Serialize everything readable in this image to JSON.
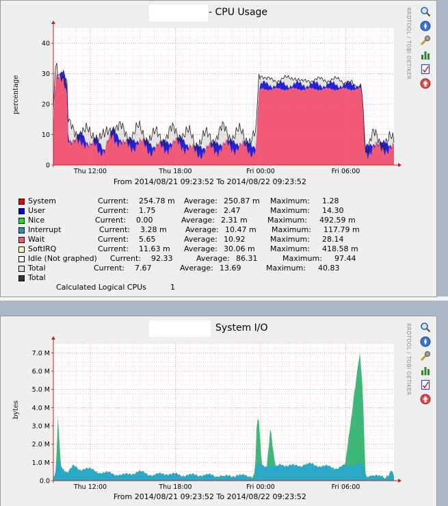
{
  "chart_data": [
    {
      "type": "area",
      "title_suffix": "- CPU Usage",
      "ylabel": "percentage",
      "side_label": "RRDTOOL / TOBI OETIKER",
      "ylim": [
        0,
        45
      ],
      "yticks": [
        "0",
        "10",
        "20",
        "30",
        "40"
      ],
      "xrange": [
        "2014-08-21 09:23:52",
        "2014-08-22 09:23:52"
      ],
      "xticks": [
        "Thu 12:00",
        "Thu 18:00",
        "Fri 00:00",
        "Fri 06:00"
      ],
      "subtitle": "From 2014/08/21 09:23:52 To 2014/08/22 09:23:52",
      "series_profile": {
        "hours": [
          0,
          0.1,
          0.2,
          0.4,
          0.7,
          0.95,
          1.05,
          1.4,
          2,
          2.6,
          3,
          3.6,
          4.2,
          5,
          6,
          7,
          8,
          9,
          10,
          11,
          12,
          13,
          14,
          14.3,
          14.45,
          14.6,
          15,
          16,
          17,
          17.5,
          18,
          19,
          20,
          21,
          21.5,
          21.7,
          22,
          22.5,
          23,
          23.5,
          24
        ],
        "wait": [
          8,
          25,
          28,
          27,
          29,
          26,
          8,
          6,
          9,
          5,
          7,
          4,
          10,
          6,
          7,
          5,
          6,
          7,
          4,
          5,
          6,
          6,
          5,
          5,
          22,
          25,
          25,
          25,
          25,
          25,
          25,
          25,
          25,
          25,
          25,
          25,
          4,
          6,
          5,
          6,
          5
        ],
        "total": [
          14,
          29,
          31,
          30,
          30,
          28,
          13,
          10,
          12,
          9,
          11,
          8,
          14,
          10,
          11,
          9,
          10,
          11,
          8,
          9,
          11,
          10,
          9,
          9,
          28,
          30,
          28,
          28,
          29,
          27,
          28,
          28,
          28,
          27,
          24,
          22,
          6,
          9,
          8,
          8,
          7
        ]
      },
      "legend": [
        {
          "name": "System",
          "color": "#ee0000",
          "current": "254.78 m",
          "average": "250.87 m",
          "maximum": "1.28"
        },
        {
          "name": "User",
          "color": "#0000ee",
          "current": "1.75",
          "average": "2.47",
          "maximum": "14.30"
        },
        {
          "name": "Nice",
          "color": "#00ee00",
          "current": "0.00",
          "average": "2.31 m",
          "maximum": "492.59 m"
        },
        {
          "name": "Interrupt",
          "color": "#1a9ab8",
          "current": "3.28 m",
          "average": "10.47 m",
          "maximum": "117.79 m"
        },
        {
          "name": "Wait",
          "color": "#f05a76",
          "current": "5.65",
          "average": "10.92",
          "maximum": "28.14"
        },
        {
          "name": "SoftIRQ",
          "color": "#ffffaa",
          "current": "11.63 m",
          "average": "30.06 m",
          "maximum": "418.58 m"
        },
        {
          "name": "Idle (Not graphed)",
          "color": "#ffffff",
          "current": "92.33",
          "average": "86.31",
          "maximum": "97.44"
        },
        {
          "name": "Total",
          "color": "#dddddd",
          "current": "7.67",
          "average": "13.69",
          "maximum": "40.83"
        },
        {
          "name": "Total",
          "color": "#333333"
        }
      ],
      "labels": {
        "current": "Current:",
        "average": "Average:",
        "maximum": "Maximum:"
      },
      "cpus_label": "Calculated Logical CPUs",
      "cpus_value": "1"
    },
    {
      "type": "area",
      "title_suffix": "System I/O",
      "ylabel": "bytes",
      "side_label": "RRDTOOL / TOBI OETIKER",
      "ylim": [
        0,
        7500000
      ],
      "yticks": [
        "0.0",
        "1.0 M",
        "2.0 M",
        "3.0 M",
        "4.0 M",
        "5.0 M",
        "6.0 M",
        "7.0 M"
      ],
      "xrange": [
        "2014-08-21 09:23:52",
        "2014-08-22 09:23:52"
      ],
      "xticks": [
        "Thu 12:00",
        "Thu 18:00",
        "Fri 00:00",
        "Fri 06:00"
      ],
      "subtitle": "From 2014/08/21 09:23:52 To 2014/08/22 09:23:52",
      "series_profile": {
        "hours": [
          0,
          0.2,
          0.3,
          0.45,
          0.6,
          1,
          1.4,
          1.8,
          2.3,
          3,
          4,
          5,
          6,
          7,
          8,
          9,
          10,
          11,
          12,
          13,
          14,
          14.2,
          14.35,
          14.5,
          14.7,
          15,
          15.3,
          15.5,
          15.7,
          16,
          17,
          18,
          19,
          20,
          20.5,
          21.3,
          21.6,
          21.8,
          22,
          22.3,
          23,
          23.6,
          23.8,
          24
        ],
        "read": [
          0,
          0.6,
          1.2,
          1.0,
          0.7,
          0.5,
          0.8,
          0.6,
          0.7,
          0.5,
          0.4,
          0.3,
          0.5,
          0.3,
          0.4,
          0.3,
          0.3,
          0.3,
          0.2,
          0.3,
          0.2,
          0.3,
          0.9,
          1.0,
          0.8,
          0.8,
          0.9,
          0.8,
          0.7,
          0.9,
          0.8,
          0.9,
          0.8,
          0.7,
          0.8,
          0.9,
          0.9,
          0.9,
          0.2,
          0.3,
          0.2,
          0.2,
          0.6,
          0.2
        ],
        "write": [
          0,
          0.3,
          3.8,
          1.5,
          0.4,
          0.2,
          0.6,
          0.3,
          0.5,
          0.2,
          0.1,
          0.1,
          0.2,
          0.1,
          0.1,
          0.1,
          0.1,
          0.1,
          0.1,
          0.1,
          0.1,
          0.2,
          3.4,
          3.1,
          0.6,
          0.4,
          2.8,
          1.5,
          0.5,
          0.6,
          0.4,
          0.8,
          0.5,
          0.3,
          0.4,
          5.2,
          7.0,
          4.8,
          0.2,
          0.1,
          0.1,
          0.1,
          0.4,
          0.1
        ]
      }
    }
  ]
}
